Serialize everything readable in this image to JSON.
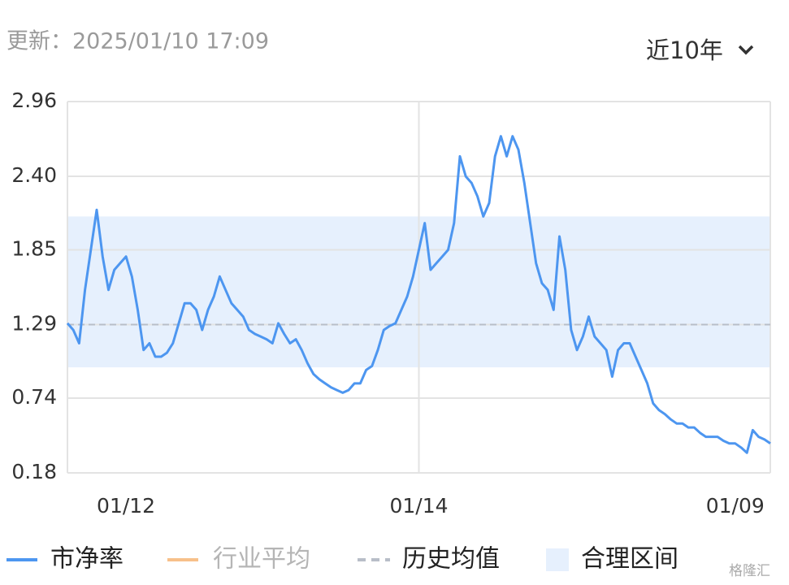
{
  "header": {
    "updated": "更新：2025/01/10 17:09",
    "range_selector": "近10年"
  },
  "chart_data": {
    "type": "line",
    "categories": [
      null,
      null,
      null,
      null,
      null,
      null,
      null,
      null,
      null,
      null,
      "01/12",
      null,
      null,
      null,
      null,
      null,
      null,
      null,
      null,
      null,
      null,
      null,
      null,
      null,
      null,
      null,
      null,
      null,
      null,
      null,
      null,
      null,
      null,
      null,
      null,
      null,
      null,
      null,
      null,
      null,
      null,
      null,
      null,
      null,
      null,
      null,
      null,
      null,
      null,
      null,
      null,
      null,
      null,
      null,
      null,
      null,
      null,
      null,
      null,
      null,
      "01/14",
      null,
      null,
      null,
      null,
      null,
      null,
      null,
      null,
      null,
      null,
      null,
      null,
      null,
      null,
      null,
      null,
      null,
      null,
      null,
      null,
      null,
      null,
      null,
      null,
      null,
      null,
      null,
      null,
      null,
      null,
      null,
      null,
      null,
      null,
      null,
      null,
      null,
      null,
      null,
      null,
      null,
      null,
      null,
      null,
      null,
      null,
      null,
      null,
      null,
      null,
      null,
      null,
      null,
      "01/09",
      null,
      null,
      null,
      null,
      null,
      null
    ],
    "series": [
      {
        "name": "市净率",
        "color": "#4d96f0",
        "values": [
          1.3,
          1.25,
          1.15,
          1.55,
          1.85,
          2.15,
          1.8,
          1.55,
          1.7,
          1.75,
          1.8,
          1.65,
          1.4,
          1.1,
          1.15,
          1.05,
          1.05,
          1.08,
          1.15,
          1.3,
          1.45,
          1.45,
          1.4,
          1.25,
          1.4,
          1.5,
          1.65,
          1.55,
          1.45,
          1.4,
          1.35,
          1.25,
          1.22,
          1.2,
          1.18,
          1.15,
          1.3,
          1.22,
          1.15,
          1.18,
          1.1,
          1.0,
          0.92,
          0.88,
          0.85,
          0.82,
          0.8,
          0.78,
          0.8,
          0.85,
          0.85,
          0.95,
          0.98,
          1.1,
          1.25,
          1.28,
          1.3,
          1.4,
          1.5,
          1.65,
          1.85,
          2.05,
          1.7,
          1.75,
          1.8,
          1.85,
          2.05,
          2.55,
          2.4,
          2.35,
          2.25,
          2.1,
          2.2,
          2.55,
          2.7,
          2.55,
          2.7,
          2.6,
          2.35,
          2.05,
          1.75,
          1.6,
          1.55,
          1.4,
          1.95,
          1.7,
          1.25,
          1.1,
          1.2,
          1.35,
          1.2,
          1.15,
          1.1,
          0.9,
          1.1,
          1.15,
          1.15,
          1.05,
          0.95,
          0.85,
          0.7,
          0.65,
          0.62,
          0.58,
          0.55,
          0.55,
          0.52,
          0.52,
          0.48,
          0.45,
          0.45,
          0.45,
          0.42,
          0.4,
          0.4,
          0.37,
          0.33,
          0.5,
          0.45,
          0.43,
          0.4
        ]
      }
    ],
    "industry_average": {
      "name": "行业平均",
      "color": "#f7c08a"
    },
    "mean": {
      "name": "历史均值",
      "value": 1.29,
      "color": "#b8bec8"
    },
    "fair_range": {
      "name": "合理区间",
      "range": [
        0.97,
        2.1
      ],
      "color": "#e6f0fd"
    },
    "ylim": [
      0.18,
      2.96
    ],
    "yticks": [
      0.18,
      0.74,
      1.29,
      1.85,
      {
        "value": 2.4,
        "label": "2.40"
      },
      2.96
    ],
    "grid": true
  },
  "watermark": "格隆汇"
}
